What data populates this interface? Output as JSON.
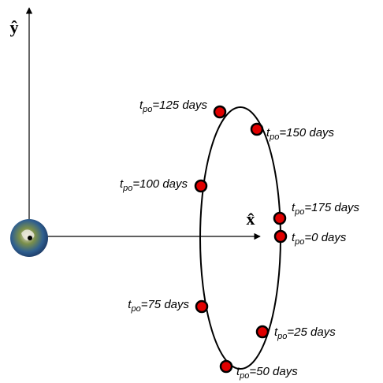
{
  "axes": {
    "y_label": "ŷ",
    "x_label": "x̂"
  },
  "points": [
    {
      "symbol": "t",
      "subscript": "po",
      "text": "=0 days"
    },
    {
      "symbol": "t",
      "subscript": "po",
      "text": "=25 days"
    },
    {
      "symbol": "t",
      "subscript": "po",
      "text": "=50 days"
    },
    {
      "symbol": "t",
      "subscript": "po",
      "text": "=75 days"
    },
    {
      "symbol": "t",
      "subscript": "po",
      "text": "=100 days"
    },
    {
      "symbol": "t",
      "subscript": "po",
      "text": "=125 days"
    },
    {
      "symbol": "t",
      "subscript": "po",
      "text": "=150 days"
    },
    {
      "symbol": "t",
      "subscript": "po",
      "text": "=175 days"
    }
  ]
}
